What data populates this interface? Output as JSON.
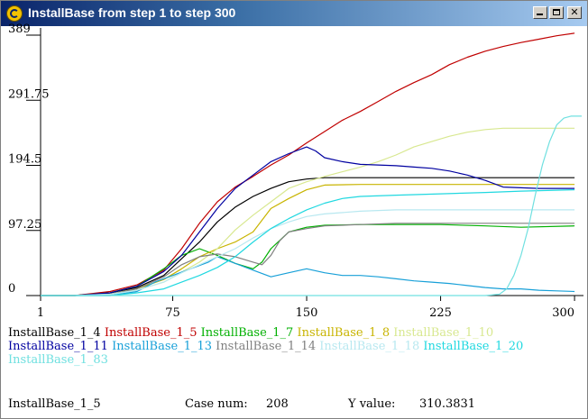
{
  "window": {
    "title": "InstallBase from step 1 to step 300"
  },
  "chart_data": {
    "type": "line",
    "xlim": [
      1,
      304
    ],
    "ylim": [
      0,
      389
    ],
    "yticks": [
      "389",
      "291.75",
      "194.5",
      "97.25",
      "0"
    ],
    "ytick_values": [
      389,
      291.75,
      194.5,
      97.25,
      0
    ],
    "xticks": [
      "1",
      "75",
      "150",
      "225",
      "300"
    ],
    "xtick_values": [
      1,
      75,
      150,
      225,
      300
    ],
    "series": [
      {
        "name": "InstallBase_1_4",
        "color": "#000000",
        "x": [
          1,
          20,
          40,
          55,
          70,
          80,
          90,
          100,
          110,
          120,
          130,
          140,
          150,
          160,
          180,
          200,
          230,
          260,
          300
        ],
        "y": [
          0,
          0,
          4,
          12,
          30,
          55,
          80,
          110,
          132,
          148,
          160,
          170,
          174,
          176,
          176,
          176,
          176,
          176,
          176
        ]
      },
      {
        "name": "InstallBase_1_5",
        "color": "#c00000",
        "x": [
          1,
          20,
          40,
          55,
          70,
          80,
          90,
          100,
          110,
          120,
          130,
          140,
          150,
          160,
          170,
          180,
          190,
          200,
          210,
          220,
          230,
          240,
          250,
          260,
          270,
          280,
          290,
          300
        ],
        "y": [
          0,
          0,
          6,
          16,
          38,
          70,
          108,
          140,
          162,
          178,
          195,
          210,
          228,
          245,
          262,
          275,
          290,
          305,
          318,
          330,
          345,
          356,
          365,
          372,
          378,
          383,
          388,
          392
        ]
      },
      {
        "name": "InstallBase_1_7",
        "color": "#00b000",
        "x": [
          1,
          20,
          40,
          55,
          70,
          80,
          90,
          100,
          110,
          120,
          125,
          130,
          140,
          150,
          160,
          180,
          200,
          225,
          250,
          270,
          300
        ],
        "y": [
          0,
          0,
          4,
          14,
          40,
          60,
          70,
          60,
          48,
          40,
          50,
          70,
          95,
          102,
          105,
          106,
          106,
          106,
          104,
          102,
          104
        ]
      },
      {
        "name": "InstallBase_1_8",
        "color": "#c8b400",
        "x": [
          1,
          20,
          40,
          55,
          70,
          80,
          90,
          100,
          110,
          120,
          130,
          140,
          150,
          160,
          180,
          200,
          225,
          250,
          270,
          300
        ],
        "y": [
          0,
          0,
          2,
          10,
          24,
          40,
          58,
          70,
          80,
          95,
          130,
          145,
          158,
          165,
          166,
          166,
          166,
          166,
          166,
          166
        ]
      },
      {
        "name": "InstallBase_1_10",
        "color": "#d8e890",
        "x": [
          1,
          20,
          40,
          55,
          70,
          80,
          90,
          100,
          110,
          120,
          130,
          140,
          150,
          160,
          170,
          180,
          190,
          200,
          210,
          220,
          230,
          240,
          250,
          260,
          270,
          300
        ],
        "y": [
          0,
          0,
          2,
          8,
          20,
          35,
          50,
          70,
          98,
          120,
          140,
          160,
          170,
          178,
          185,
          192,
          200,
          210,
          222,
          230,
          238,
          244,
          248,
          250,
          250,
          250
        ]
      },
      {
        "name": "InstallBase_1_11",
        "color": "#0000a0",
        "x": [
          1,
          20,
          40,
          55,
          70,
          80,
          90,
          100,
          110,
          120,
          130,
          140,
          150,
          155,
          160,
          170,
          180,
          190,
          200,
          210,
          220,
          230,
          240,
          250,
          260,
          280,
          300
        ],
        "y": [
          0,
          0,
          4,
          14,
          36,
          60,
          95,
          130,
          160,
          180,
          200,
          212,
          222,
          216,
          206,
          200,
          196,
          195,
          194,
          192,
          190,
          186,
          180,
          172,
          162,
          160,
          160
        ]
      },
      {
        "name": "InstallBase_1_13",
        "color": "#18a0d8",
        "x": [
          1,
          20,
          40,
          55,
          65,
          75,
          85,
          95,
          100,
          110,
          120,
          130,
          140,
          150,
          160,
          170,
          180,
          190,
          200,
          210,
          220,
          230,
          240,
          250,
          260,
          270,
          280,
          290,
          300
        ],
        "y": [
          0,
          0,
          0,
          6,
          20,
          30,
          40,
          50,
          58,
          48,
          38,
          28,
          34,
          40,
          34,
          30,
          30,
          28,
          25,
          22,
          20,
          18,
          15,
          12,
          10,
          10,
          8,
          7,
          6
        ]
      },
      {
        "name": "InstallBase_1_14",
        "color": "#808080",
        "x": [
          1,
          20,
          40,
          55,
          70,
          80,
          90,
          100,
          110,
          120,
          125,
          130,
          135,
          140,
          150,
          160,
          180,
          200,
          225,
          250,
          270,
          300
        ],
        "y": [
          0,
          0,
          2,
          10,
          28,
          46,
          58,
          62,
          58,
          50,
          46,
          60,
          82,
          95,
          100,
          104,
          106,
          108,
          108,
          108,
          108,
          108
        ]
      },
      {
        "name": "InstallBase_1_18",
        "color": "#b8e8f0",
        "x": [
          1,
          20,
          40,
          55,
          70,
          80,
          90,
          100,
          110,
          120,
          130,
          140,
          150,
          160,
          180,
          200,
          225,
          250,
          270,
          300
        ],
        "y": [
          0,
          0,
          2,
          8,
          20,
          34,
          46,
          58,
          70,
          86,
          100,
          110,
          118,
          122,
          126,
          128,
          128,
          128,
          128,
          128
        ]
      },
      {
        "name": "InstallBase_1_20",
        "color": "#20d8e0",
        "x": [
          1,
          20,
          40,
          55,
          70,
          80,
          90,
          100,
          110,
          120,
          130,
          140,
          150,
          160,
          170,
          180,
          200,
          225,
          250,
          270,
          300
        ],
        "y": [
          0,
          0,
          0,
          4,
          10,
          20,
          30,
          42,
          58,
          80,
          100,
          115,
          128,
          138,
          145,
          148,
          150,
          152,
          154,
          156,
          158
        ]
      },
      {
        "name": "InstallBase_1_83",
        "color": "#70e0e0",
        "x": [
          1,
          100,
          200,
          250,
          258,
          262,
          266,
          270,
          274,
          278,
          282,
          286,
          290,
          294,
          298,
          300,
          304
        ],
        "y": [
          0,
          0,
          0,
          0,
          2,
          10,
          30,
          60,
          100,
          150,
          195,
          230,
          255,
          265,
          268,
          268,
          268
        ]
      }
    ]
  },
  "legend_rows": [
    [
      0,
      1,
      2,
      3,
      4
    ],
    [
      5,
      6,
      7,
      8,
      9
    ],
    [
      10
    ]
  ],
  "status": {
    "series_name": "InstallBase_1_5",
    "case_label": "Case num:",
    "case_value": "208",
    "y_label": "Y value:",
    "y_value": "310.3831"
  }
}
